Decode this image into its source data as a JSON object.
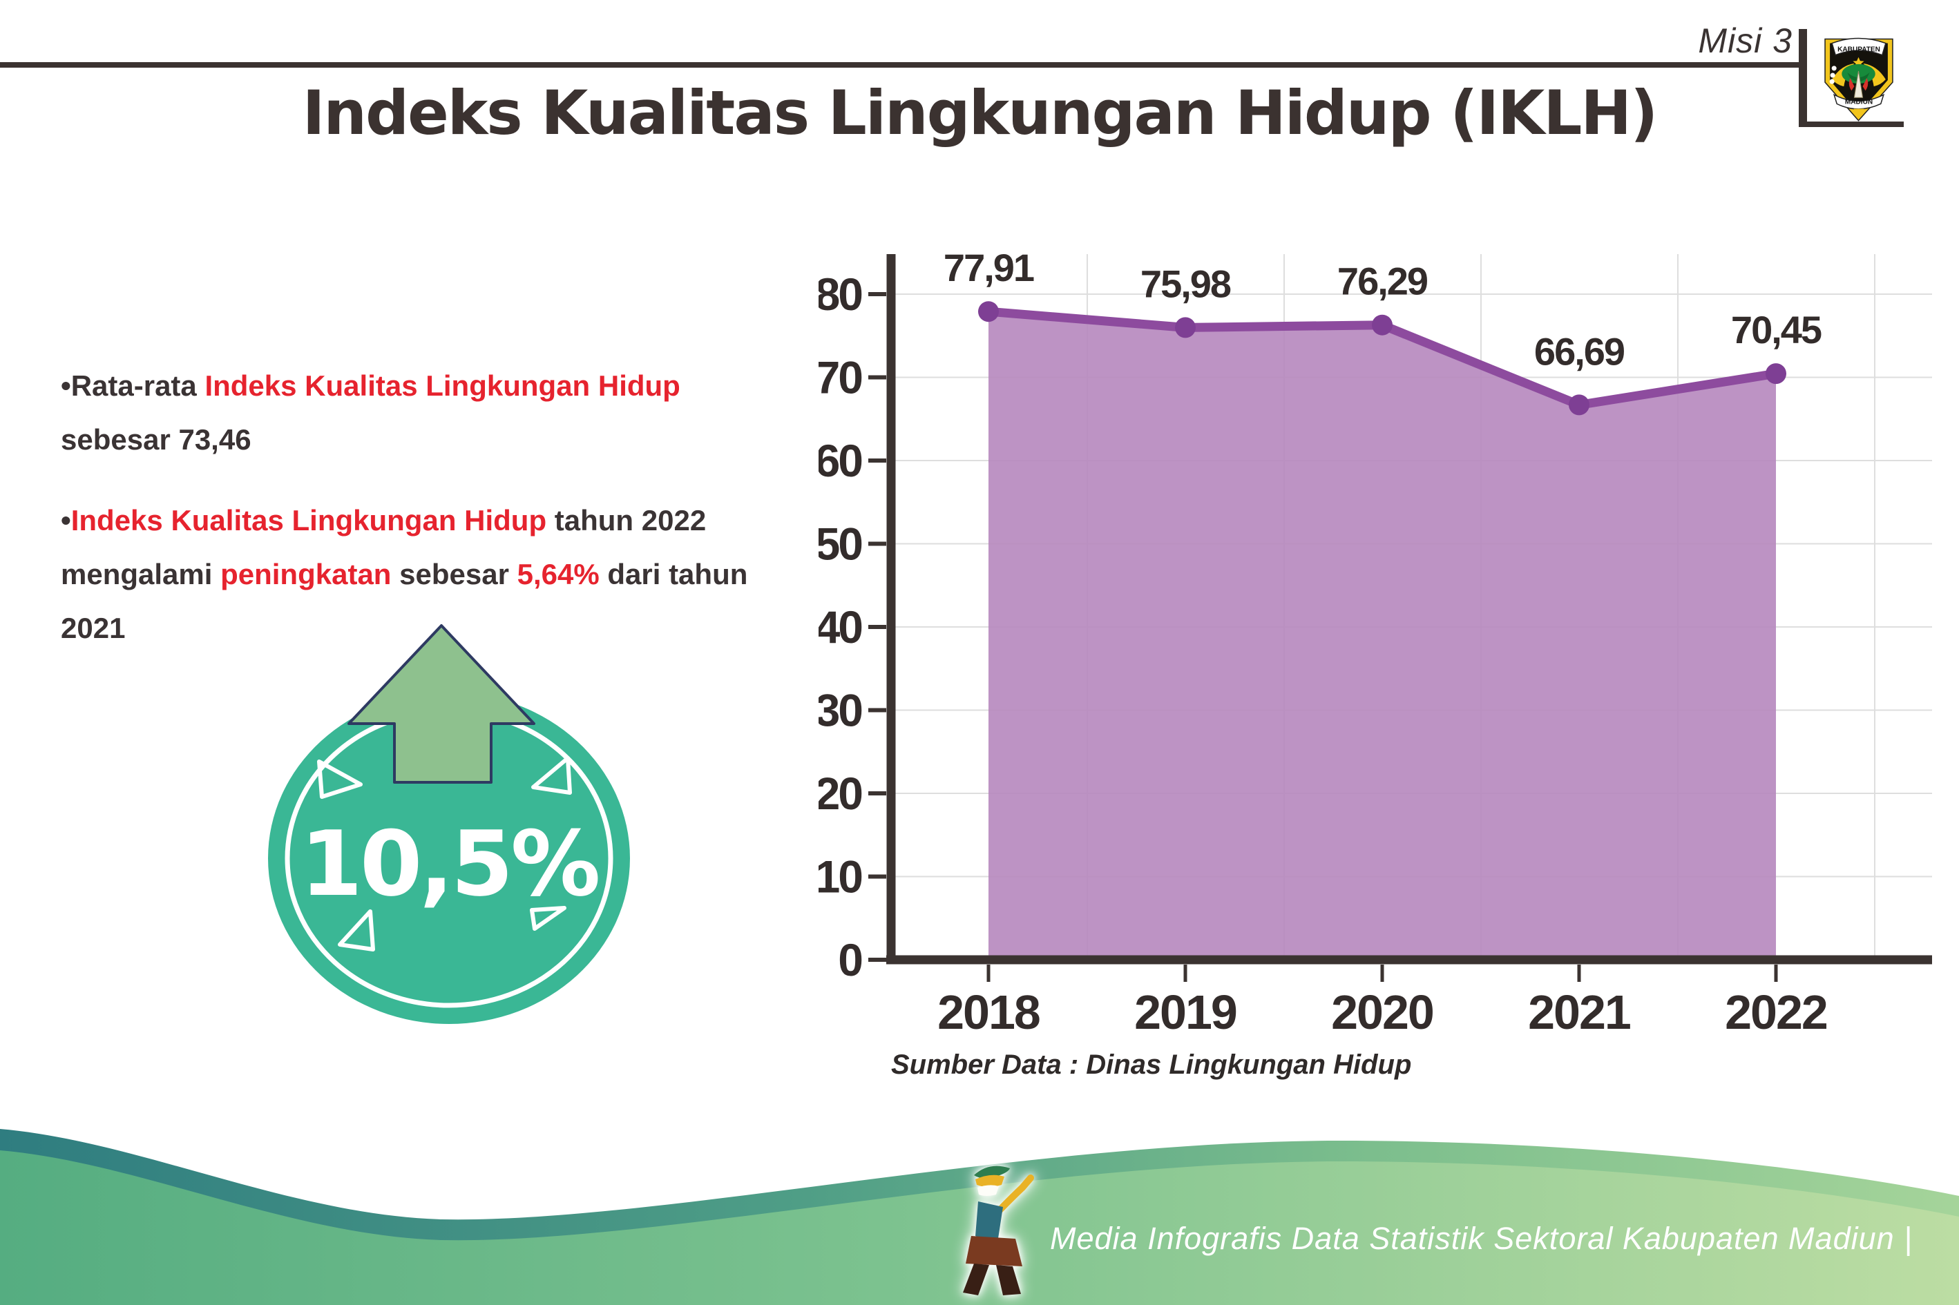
{
  "header": {
    "misi_label": "Misi 3",
    "title": "Indeks Kualitas Lingkungan Hidup (IKLH)",
    "logo": {
      "top_text": "KABUPATEN",
      "bottom_text": "MADIUN"
    }
  },
  "bullets": {
    "b1": {
      "p1": "•Rata-rata ",
      "p2": "Indeks Kualitas Lingkungan Hidup",
      "p3": " sebesar 73,46"
    },
    "b2": {
      "p1": "•",
      "p2": "Indeks Kualitas Lingkungan Hidup",
      "p3": " tahun 2022 mengalami ",
      "p4": "peningkatan",
      "p5": " sebesar ",
      "p6": "5,64%",
      "p7": " dari tahun 2021"
    }
  },
  "badge": {
    "value": "10,5%"
  },
  "chart_data": {
    "type": "area",
    "title": "Indeks Kualitas Lingkungan Hidup (IKLH)",
    "categories": [
      "2018",
      "2019",
      "2020",
      "2021",
      "2022"
    ],
    "values": [
      77.91,
      75.98,
      76.29,
      66.69,
      70.45
    ],
    "value_labels": [
      "77,91",
      "75,98",
      "76,29",
      "66,69",
      "70,45"
    ],
    "xlabel": "",
    "ylabel": "",
    "ylim": [
      0,
      80
    ],
    "yticks": [
      0,
      10,
      20,
      30,
      40,
      50,
      60,
      70,
      80
    ],
    "grid": "on",
    "legend": "none",
    "source_note": "Sumber Data : Dinas Lingkungan Hidup",
    "colors": {
      "area_fill": "#B687BE",
      "line": "#8D4B9E",
      "marker": "#7E3F94",
      "grid": "#DEDEDE",
      "axis": "#3B3331",
      "text": "#332C2B"
    }
  },
  "footer": {
    "credit": "Media Infografis Data Statistik Sektoral Kabupaten Madiun |"
  },
  "colors": {
    "accent_red": "#E6232E",
    "text_dark": "#3A3334",
    "badge_teal": "#3AB795",
    "arrow_green": "#8EC18E",
    "footer_teal": "#2F7D80",
    "footer_green": "#7CC28F"
  }
}
